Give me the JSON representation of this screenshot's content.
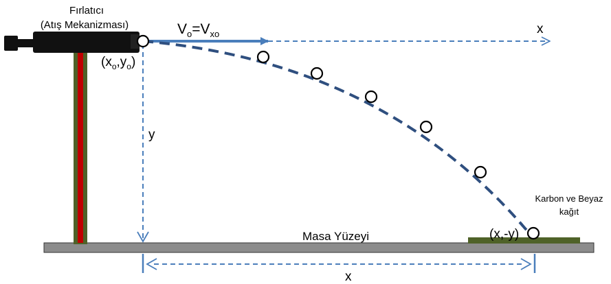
{
  "launcher": {
    "title": "Fırlatıcı",
    "subtitle": "(Atış Mekanizması)"
  },
  "velocity": {
    "V": "V",
    "o_sub": "o",
    "eq": "=V",
    "xo_sub": "xo"
  },
  "start_point": {
    "open": "(x",
    "o_sub1": "o",
    "comma": ",y",
    "o_sub2": "o",
    "close": ")"
  },
  "axis_x_top": "x",
  "axis_y": "y",
  "landing_point": "(x,-y)",
  "table_label": "Masa Yüzeyi",
  "paper": {
    "line1": "Karbon ve Beyaz",
    "line2": "kağıt"
  },
  "distance_label": "x",
  "colors": {
    "arrow_blue": "#4a7ebb",
    "dash_blue": "#2f4f7f",
    "stand_red": "#c00000",
    "stand_green": "#4f6228",
    "table_gray": "#8c8c8c",
    "paper_green": "#4f6228",
    "launcher_black": "#111111"
  }
}
